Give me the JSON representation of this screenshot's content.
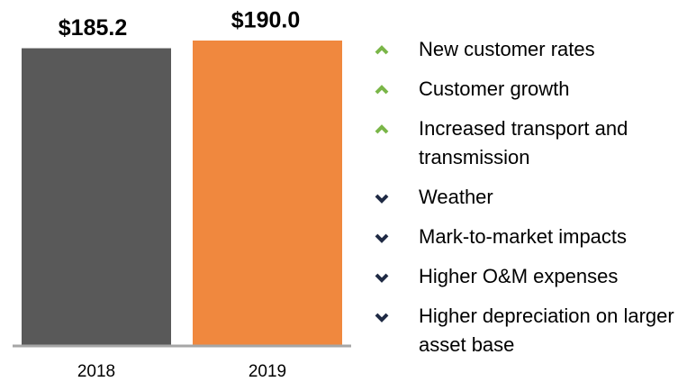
{
  "chart_data": {
    "type": "bar",
    "categories": [
      "2018",
      "2019"
    ],
    "values": [
      185.2,
      190.0
    ],
    "value_labels": [
      "$185.2",
      "$190.0"
    ],
    "colors": [
      "#595959",
      "#f0883e"
    ],
    "bullets": [
      {
        "text": "New customer rates",
        "direction": "up"
      },
      {
        "text": "Customer growth",
        "direction": "up"
      },
      {
        "text": "Increased transport and transmission",
        "direction": "up"
      },
      {
        "text": "Weather",
        "direction": "down"
      },
      {
        "text": "Mark-to-market impacts",
        "direction": "down"
      },
      {
        "text": "Higher O&M expenses",
        "direction": "down"
      },
      {
        "text": "Higher depreciation on larger asset base",
        "direction": "down"
      }
    ],
    "bullet_colors": {
      "up": "#7ab648",
      "down": "#1f2a44"
    }
  }
}
